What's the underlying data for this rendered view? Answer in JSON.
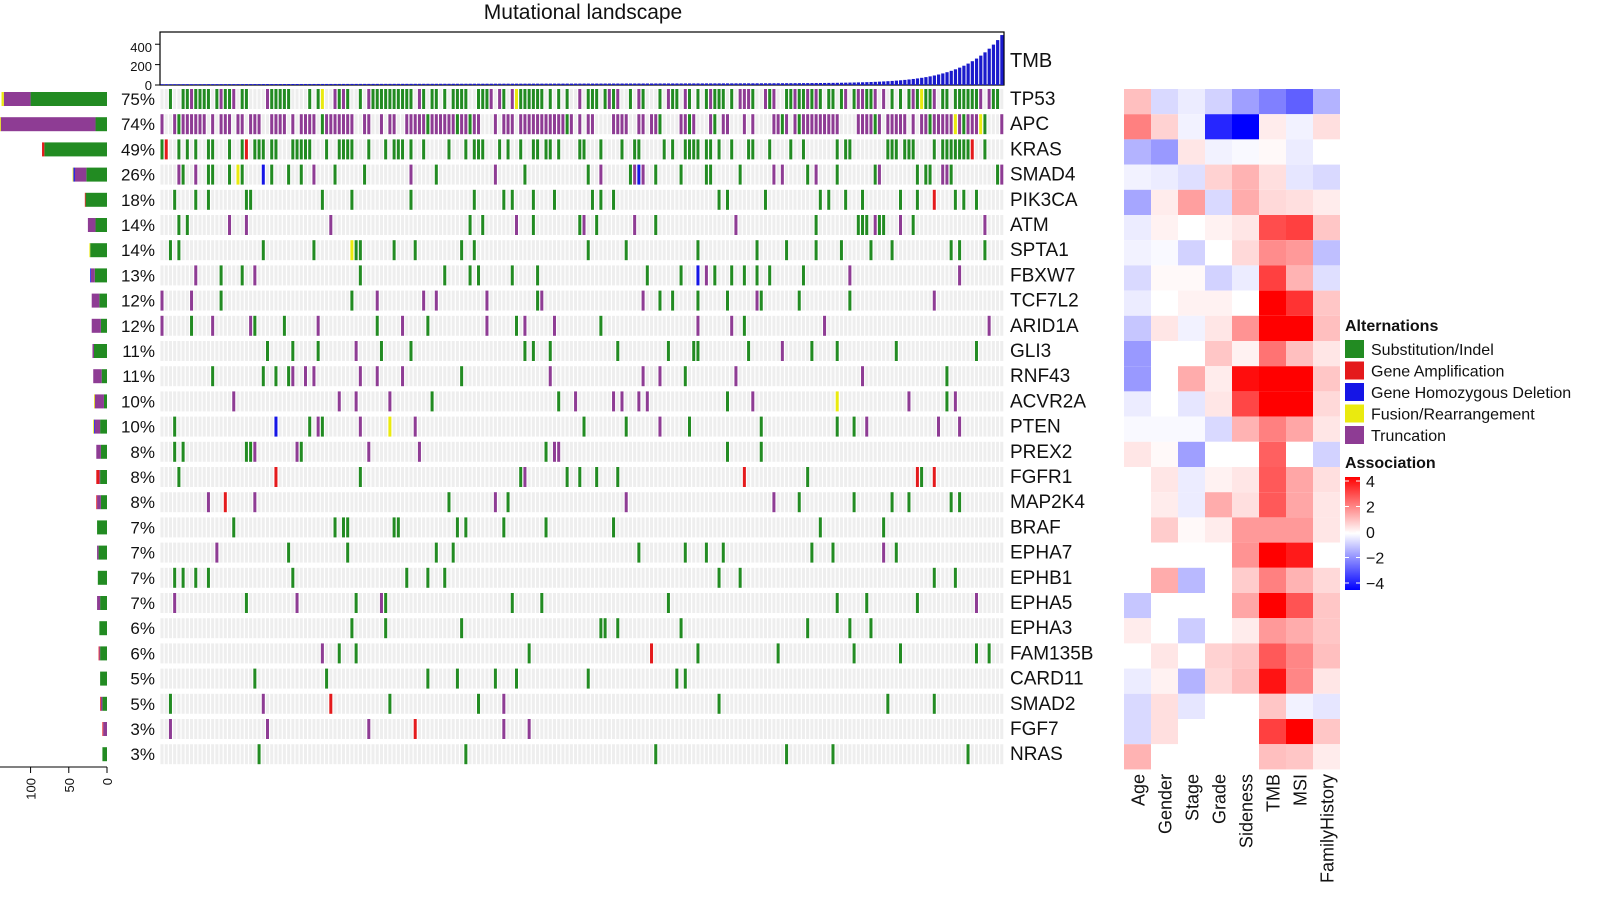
{
  "chart_data": [
    {
      "name": "oncoprint",
      "type": "heatmap",
      "title": "Mutational landscape",
      "tmb_label": "TMB",
      "tmb_axis_ticks": [
        "0",
        "200",
        "400"
      ],
      "tmb_ylim": [
        0,
        520
      ],
      "sample_count": 200,
      "side_axis_ticks": [
        "100",
        "50",
        "0"
      ],
      "side_xlim": [
        0,
        140
      ],
      "colors": {
        "Substitution/Indel": "#228B22",
        "Gene Amplification": "#E41A1C",
        "Gene Homozygous Deletion": "#1515E6",
        "Fusion/Rearrangement": "#EAEA0F",
        "Truncation": "#8E3C94",
        "background": "#EEEEEE",
        "tmb_bar": "#1A1ACC"
      },
      "genes": [
        {
          "name": "TP53",
          "pct": "75%",
          "counts": {
            "Substitution/Indel": 100,
            "Truncation": 35,
            "Fusion/Rearrangement": 3
          }
        },
        {
          "name": "APC",
          "pct": "74%",
          "counts": {
            "Truncation": 124,
            "Substitution/Indel": 15,
            "Fusion/Rearrangement": 2
          }
        },
        {
          "name": "KRAS",
          "pct": "49%",
          "counts": {
            "Substitution/Indel": 82,
            "Gene Amplification": 3
          }
        },
        {
          "name": "SMAD4",
          "pct": "26%",
          "counts": {
            "Substitution/Indel": 27,
            "Truncation": 15,
            "Gene Homozygous Deletion": 2,
            "Fusion/Rearrangement": 1
          }
        },
        {
          "name": "PIK3CA",
          "pct": "18%",
          "counts": {
            "Substitution/Indel": 28,
            "Gene Amplification": 1
          }
        },
        {
          "name": "ATM",
          "pct": "14%",
          "counts": {
            "Substitution/Indel": 15,
            "Truncation": 10
          }
        },
        {
          "name": "SPTA1",
          "pct": "14%",
          "counts": {
            "Substitution/Indel": 22,
            "Fusion/Rearrangement": 1
          }
        },
        {
          "name": "FBXW7",
          "pct": "13%",
          "counts": {
            "Substitution/Indel": 16,
            "Truncation": 5,
            "Gene Homozygous Deletion": 1
          }
        },
        {
          "name": "TCF7L2",
          "pct": "12%",
          "counts": {
            "Substitution/Indel": 10,
            "Truncation": 10
          }
        },
        {
          "name": "ARID1A",
          "pct": "12%",
          "counts": {
            "Substitution/Indel": 8,
            "Truncation": 12
          }
        },
        {
          "name": "GLI3",
          "pct": "11%",
          "counts": {
            "Substitution/Indel": 17,
            "Truncation": 2
          }
        },
        {
          "name": "RNF43",
          "pct": "11%",
          "counts": {
            "Truncation": 11,
            "Substitution/Indel": 7
          }
        },
        {
          "name": "ACVR2A",
          "pct": "10%",
          "counts": {
            "Truncation": 12,
            "Substitution/Indel": 4,
            "Fusion/Rearrangement": 1
          }
        },
        {
          "name": "PTEN",
          "pct": "10%",
          "counts": {
            "Substitution/Indel": 9,
            "Truncation": 7,
            "Fusion/Rearrangement": 1,
            "Gene Homozygous Deletion": 1
          }
        },
        {
          "name": "PREX2",
          "pct": "8%",
          "counts": {
            "Substitution/Indel": 8,
            "Truncation": 6
          }
        },
        {
          "name": "FGFR1",
          "pct": "8%",
          "counts": {
            "Substitution/Indel": 9,
            "Gene Amplification": 4,
            "Truncation": 1
          }
        },
        {
          "name": "MAP2K4",
          "pct": "8%",
          "counts": {
            "Substitution/Indel": 8,
            "Truncation": 5,
            "Gene Amplification": 1
          }
        },
        {
          "name": "BRAF",
          "pct": "7%",
          "counts": {
            "Substitution/Indel": 13
          }
        },
        {
          "name": "EPHA7",
          "pct": "7%",
          "counts": {
            "Substitution/Indel": 11,
            "Truncation": 2
          }
        },
        {
          "name": "EPHB1",
          "pct": "7%",
          "counts": {
            "Substitution/Indel": 12
          }
        },
        {
          "name": "EPHA5",
          "pct": "7%",
          "counts": {
            "Substitution/Indel": 9,
            "Truncation": 4
          }
        },
        {
          "name": "EPHA3",
          "pct": "6%",
          "counts": {
            "Substitution/Indel": 10
          }
        },
        {
          "name": "FAM135B",
          "pct": "6%",
          "counts": {
            "Substitution/Indel": 9,
            "Gene Amplification": 1,
            "Truncation": 1
          }
        },
        {
          "name": "CARD11",
          "pct": "5%",
          "counts": {
            "Substitution/Indel": 9
          }
        },
        {
          "name": "SMAD2",
          "pct": "5%",
          "counts": {
            "Substitution/Indel": 6,
            "Truncation": 2,
            "Gene Amplification": 1
          }
        },
        {
          "name": "FGF7",
          "pct": "3%",
          "counts": {
            "Truncation": 5,
            "Gene Amplification": 1
          }
        },
        {
          "name": "NRAS",
          "pct": "3%",
          "counts": {
            "Substitution/Indel": 6
          }
        }
      ]
    },
    {
      "name": "association-heatmap",
      "type": "heatmap",
      "x_labels": [
        "Age",
        "Gender",
        "Stage",
        "Grade",
        "Sideness",
        "TMB",
        "MSI",
        "FamilyHistory"
      ],
      "y_labels": [
        "TP53",
        "APC",
        "KRAS",
        "SMAD4",
        "PIK3CA",
        "ATM",
        "SPTA1",
        "FBXW7",
        "TCF7L2",
        "ARID1A",
        "GLI3",
        "RNF43",
        "ACVR2A",
        "PTEN",
        "PREX2",
        "FGFR1",
        "MAP2K4",
        "BRAF",
        "EPHA7",
        "EPHB1",
        "EPHA5",
        "EPHA3",
        "FAM135B",
        "CARD11",
        "SMAD2",
        "FGF7",
        "NRAS"
      ],
      "values": [
        [
          1.0,
          -0.6,
          -0.3,
          -0.7,
          -1.5,
          -2.0,
          -2.5,
          -1.2
        ],
        [
          2.0,
          0.7,
          -0.2,
          -3.4,
          -4.3,
          0.3,
          -0.2,
          0.5
        ],
        [
          -1.2,
          -1.6,
          0.4,
          -0.2,
          -0.1,
          0.1,
          -0.3,
          0.0
        ],
        [
          -0.2,
          -0.3,
          -0.5,
          0.7,
          1.2,
          0.5,
          -0.4,
          -0.6
        ],
        [
          -1.4,
          0.3,
          1.5,
          -0.6,
          1.3,
          0.6,
          0.5,
          0.3
        ],
        [
          -0.3,
          0.2,
          0.0,
          0.2,
          0.4,
          2.8,
          3.0,
          0.9
        ],
        [
          -0.2,
          -0.1,
          -0.7,
          0.0,
          0.6,
          1.8,
          1.6,
          -1.0
        ],
        [
          -0.6,
          0.1,
          0.1,
          -0.7,
          -0.3,
          3.0,
          1.2,
          -0.5
        ],
        [
          -0.3,
          0.0,
          0.2,
          0.2,
          0.0,
          4.0,
          3.2,
          0.9
        ],
        [
          -0.9,
          0.4,
          -0.2,
          0.4,
          1.7,
          4.3,
          4.3,
          1.0
        ],
        [
          -1.6,
          0.0,
          0.0,
          0.9,
          0.2,
          2.2,
          1.0,
          0.4
        ],
        [
          -1.6,
          0.0,
          1.3,
          0.3,
          3.8,
          4.4,
          4.0,
          0.9
        ],
        [
          -0.3,
          0.0,
          -0.4,
          0.4,
          2.9,
          4.3,
          4.0,
          0.6
        ],
        [
          -0.1,
          -0.1,
          -0.1,
          -0.6,
          1.2,
          2.0,
          1.4,
          0.4
        ],
        [
          0.4,
          0.1,
          -1.5,
          0.0,
          0.0,
          2.5,
          0.0,
          -0.7
        ],
        [
          0.0,
          0.4,
          -0.3,
          0.2,
          0.4,
          2.6,
          1.4,
          0.5
        ],
        [
          0.0,
          0.3,
          -0.3,
          1.3,
          0.5,
          2.6,
          1.4,
          0.4
        ],
        [
          0.0,
          0.8,
          0.1,
          0.3,
          1.6,
          1.6,
          1.6,
          0.4
        ],
        [
          0.0,
          0.0,
          0.0,
          0.0,
          1.7,
          4.3,
          3.6,
          0.0
        ],
        [
          0.0,
          1.3,
          -1.1,
          0.0,
          0.8,
          2.0,
          1.2,
          0.6
        ],
        [
          -0.9,
          0.0,
          0.0,
          0.0,
          1.4,
          4.4,
          2.7,
          0.9
        ],
        [
          0.3,
          0.0,
          -0.8,
          0.0,
          0.3,
          1.6,
          1.3,
          0.9
        ],
        [
          0.0,
          0.4,
          0.0,
          0.7,
          0.9,
          2.6,
          1.9,
          1.0
        ],
        [
          -0.3,
          0.2,
          -1.2,
          0.6,
          1.0,
          3.7,
          1.9,
          0.4
        ],
        [
          -0.6,
          0.5,
          -0.4,
          0.0,
          0.0,
          0.9,
          -0.2,
          -0.4
        ],
        [
          -0.6,
          0.5,
          0.0,
          0.0,
          0.0,
          3.0,
          4.4,
          0.9
        ],
        [
          1.2,
          0.0,
          0.0,
          0.0,
          0.0,
          1.0,
          0.9,
          0.3
        ]
      ],
      "color_scale": {
        "min": -4,
        "max": 4,
        "low": "#0000FF",
        "mid": "#FFFFFF",
        "high": "#FF0000"
      },
      "legend_title": "Association",
      "legend_ticks": [
        "4",
        "2",
        "0",
        "−2",
        "−4"
      ]
    }
  ],
  "legend_alterations": {
    "title": "Alternations",
    "items": [
      "Substitution/Indel",
      "Gene Amplification",
      "Gene Homozygous Deletion",
      "Fusion/Rearrangement",
      "Truncation"
    ]
  }
}
